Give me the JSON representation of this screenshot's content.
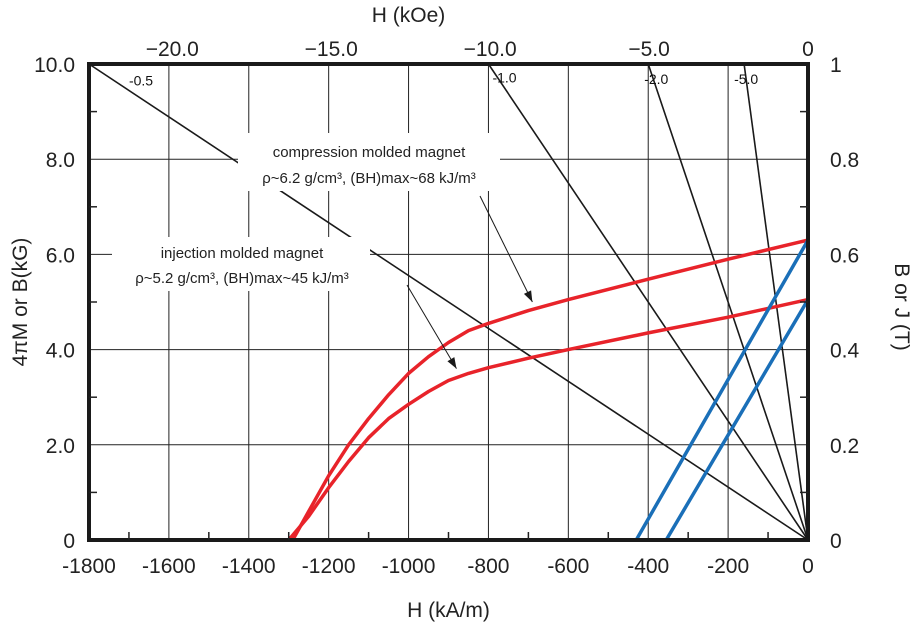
{
  "chart_data": {
    "type": "line",
    "xlabel": "H (kA/m)",
    "x2label": "H (kOe)",
    "ylabel": "4πM or B(kG)",
    "y2label": "B or J (T)",
    "xlim": [
      -1800,
      0
    ],
    "ylim": [
      0,
      10
    ],
    "x_ticks": [
      "-1800",
      "-1600",
      "-1400",
      "-1200",
      "-1000",
      "-800",
      "-600",
      "-400",
      "-200",
      "0"
    ],
    "x_tick_values": [
      -1800,
      -1600,
      -1400,
      -1200,
      -1000,
      -800,
      -600,
      -400,
      -200,
      0
    ],
    "x2_ticks": [
      "−20.0",
      "−15.0",
      "−10.0",
      "−5.0",
      "0"
    ],
    "x2_tick_values": [
      -20,
      -15,
      -10,
      -5,
      0
    ],
    "y_ticks": [
      "0",
      "2.0",
      "4.0",
      "6.0",
      "8.0",
      "10.0"
    ],
    "y_tick_values": [
      0,
      2,
      4,
      6,
      8,
      10
    ],
    "y2_ticks": [
      "0",
      "0.2",
      "0.4",
      "0.6",
      "0.8",
      "1"
    ],
    "y2_tick_values": [
      0,
      2,
      4,
      6,
      8,
      10
    ],
    "grid": true,
    "series": [
      {
        "color": "#e8232a",
        "points": [
          [
            -1290,
            0
          ],
          [
            -1250,
            0.6
          ],
          [
            -1200,
            1.35
          ],
          [
            -1150,
            2.0
          ],
          [
            -1100,
            2.55
          ],
          [
            -1050,
            3.05
          ],
          [
            -1000,
            3.5
          ],
          [
            -950,
            3.85
          ],
          [
            -900,
            4.15
          ],
          [
            -850,
            4.4
          ],
          [
            -800,
            4.55
          ],
          [
            -700,
            4.82
          ],
          [
            -600,
            5.05
          ],
          [
            -400,
            5.48
          ],
          [
            -200,
            5.9
          ],
          [
            0,
            6.3
          ]
        ]
      },
      {
        "color": "#e8232a",
        "points": [
          [
            -1300,
            0
          ],
          [
            -1250,
            0.5
          ],
          [
            -1200,
            1.1
          ],
          [
            -1150,
            1.65
          ],
          [
            -1100,
            2.15
          ],
          [
            -1050,
            2.55
          ],
          [
            -1000,
            2.85
          ],
          [
            -950,
            3.12
          ],
          [
            -900,
            3.35
          ],
          [
            -850,
            3.5
          ],
          [
            -800,
            3.62
          ],
          [
            -700,
            3.82
          ],
          [
            -600,
            4.0
          ],
          [
            -400,
            4.35
          ],
          [
            -200,
            4.68
          ],
          [
            0,
            5.05
          ]
        ]
      },
      {
        "color": "#1a6fb8",
        "points": [
          [
            -430,
            0
          ],
          [
            0,
            6.3
          ]
        ]
      },
      {
        "color": "#1a6fb8",
        "points": [
          [
            -355,
            0
          ],
          [
            0,
            5.05
          ]
        ]
      }
    ],
    "load_lines": [
      {
        "label": "-0.5",
        "x_end": -1800,
        "y_end": 10,
        "label_x": -1700,
        "label_y": 9.65
      },
      {
        "label": "-1.0",
        "x_end": -800,
        "y_end": 10,
        "label_x": -790,
        "label_y": 9.72
      },
      {
        "label": "-2.0",
        "x_end": -400,
        "y_end": 10,
        "label_x": -410,
        "label_y": 9.68
      },
      {
        "label": "-5.0",
        "x_end": -160,
        "y_end": 10,
        "label_x": -185,
        "label_y": 9.68
      }
    ],
    "annotations": [
      {
        "line1": "compression molded magnet",
        "line2": "ρ~6.2 g/cm³, (BH)max~68 kJ/m³",
        "arrow_to": [
          -690,
          5.0
        ]
      },
      {
        "line1": "injection molded magnet",
        "line2": "ρ~5.2 g/cm³, (BH)max~45 kJ/m³",
        "arrow_to": [
          -880,
          3.6
        ]
      }
    ]
  }
}
